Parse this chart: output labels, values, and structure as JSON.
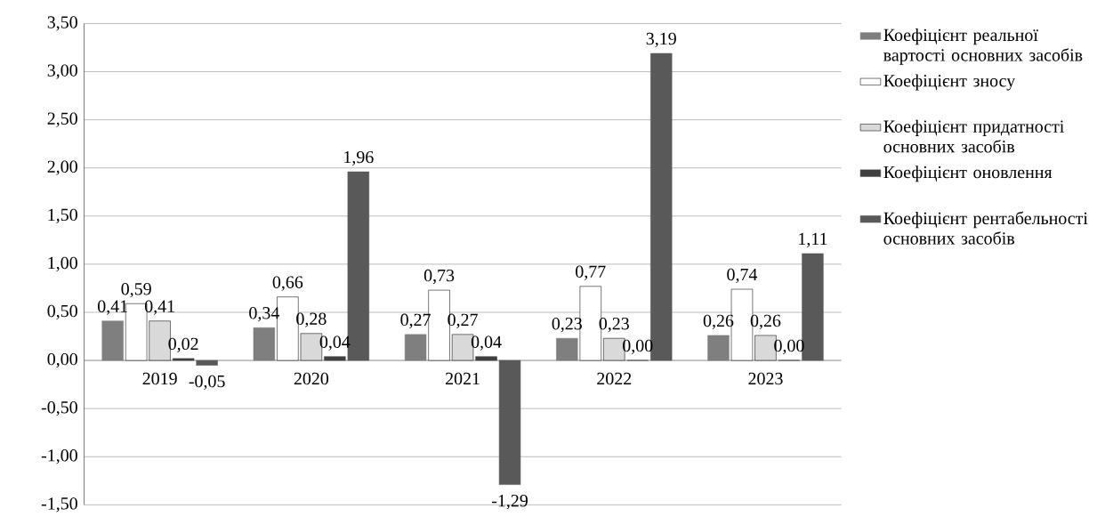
{
  "chart_data": {
    "type": "bar",
    "categories": [
      "2019",
      "2020",
      "2021",
      "2022",
      "2023"
    ],
    "series": [
      {
        "name": "Коефіцієнт реальної вартості основних засобів",
        "color": "#7f7f7f",
        "values": [
          0.41,
          0.34,
          0.27,
          0.23,
          0.26
        ],
        "value_labels": [
          "0,41",
          "0,34",
          "0,27",
          "0,23",
          "0,26"
        ]
      },
      {
        "name": "Коефіцієнт зносу",
        "color": "#ffffff",
        "values": [
          0.59,
          0.66,
          0.73,
          0.77,
          0.74
        ],
        "value_labels": [
          "0,59",
          "0,66",
          "0,73",
          "0,77",
          "0,74"
        ]
      },
      {
        "name": "Коефіцієнт придатності основних засобів",
        "color": "#d9d9d9",
        "values": [
          0.41,
          0.28,
          0.27,
          0.23,
          0.26
        ],
        "value_labels": [
          "0,41",
          "0,28",
          "0,27",
          "0,23",
          "0,26"
        ]
      },
      {
        "name": "Коефіцієнт оновлення",
        "color": "#404040",
        "values": [
          0.02,
          0.04,
          0.04,
          0.0,
          0.0
        ],
        "value_labels": [
          "0,02",
          "0,04",
          "0,04",
          "0,00",
          "0,00"
        ]
      },
      {
        "name": "Коефіцієнт рентабельності основних засобів",
        "color": "#595959",
        "values": [
          -0.05,
          1.96,
          -1.29,
          3.19,
          1.11
        ],
        "value_labels": [
          "-0,05",
          "1,96",
          "-1,29",
          "3,19",
          "1,11"
        ]
      }
    ],
    "ylim": [
      -1.5,
      3.5
    ],
    "yticks": [
      {
        "value": -1.5,
        "label": "-1,50"
      },
      {
        "value": -1.0,
        "label": "-1,00"
      },
      {
        "value": -0.5,
        "label": "-0,50"
      },
      {
        "value": 0,
        "label": "0,00"
      },
      {
        "value": 0.5,
        "label": "0,50"
      },
      {
        "value": 1.0,
        "label": "1,00"
      },
      {
        "value": 1.5,
        "label": "1,50"
      },
      {
        "value": 2.0,
        "label": "2,00"
      },
      {
        "value": 2.5,
        "label": "2,50"
      },
      {
        "value": 3.0,
        "label": "3,00"
      },
      {
        "value": 3.5,
        "label": "3,50"
      }
    ],
    "grid": "y",
    "legend": "right"
  }
}
